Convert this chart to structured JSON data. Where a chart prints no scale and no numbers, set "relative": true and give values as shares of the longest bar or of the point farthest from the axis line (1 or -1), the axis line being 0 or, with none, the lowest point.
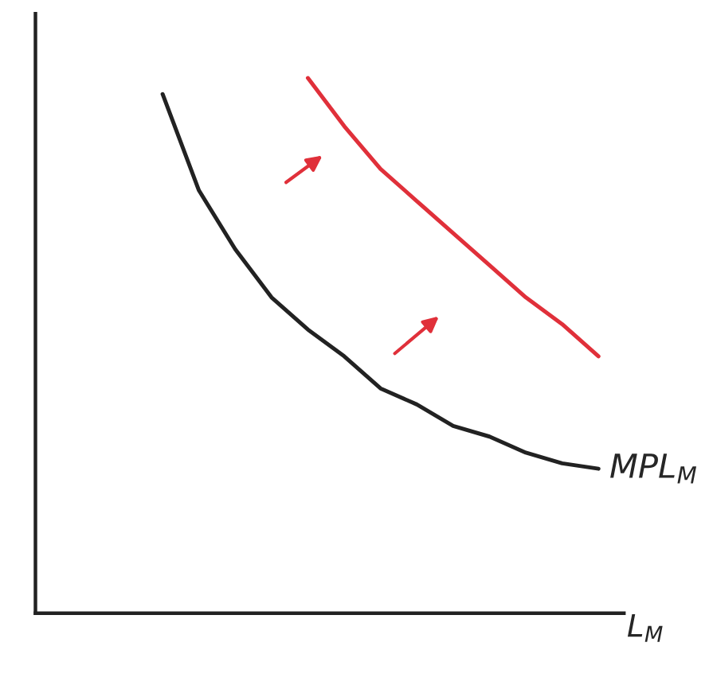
{
  "chart_data": {
    "type": "line",
    "relative": true,
    "xlabel": "L$_{M}$",
    "categories": [
      null,
      null,
      null,
      null,
      null,
      null,
      null,
      null,
      null,
      null,
      null,
      null,
      null
    ],
    "series": [
      {
        "name": "MPL$_{M}$",
        "color": "#222222",
        "values": [
          0.97,
          0.79,
          0.68,
          0.59,
          0.53,
          0.48,
          0.42,
          0.39,
          0.35,
          0.33,
          0.3,
          0.28,
          0.27
        ]
      },
      {
        "color": "#e0303a",
        "values": [
          null,
          null,
          null,
          null,
          1.0,
          0.91,
          0.83,
          0.77,
          0.71,
          0.65,
          0.59,
          0.54,
          0.48
        ]
      }
    ],
    "grid": false,
    "legend": false,
    "marker": "none",
    "line_style": "solid"
  }
}
